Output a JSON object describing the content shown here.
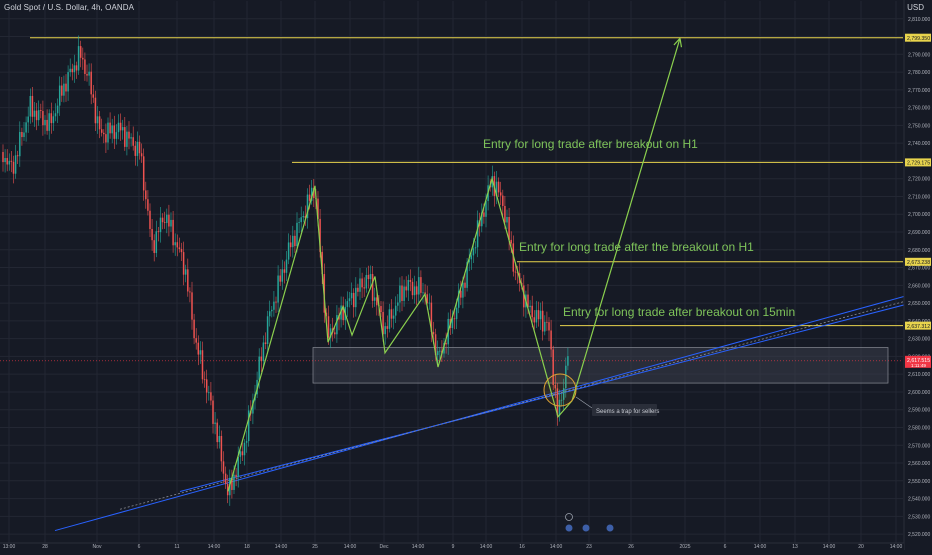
{
  "header": {
    "symbol": "Gold Spot / U.S. Dollar, 4h, OANDA",
    "currency": "USD"
  },
  "chart_data": {
    "type": "candlestick",
    "ylim": [
      2515,
      2820
    ],
    "y_ticks": [
      "2,520.000",
      "2,530.000",
      "2,540.000",
      "2,550.000",
      "2,560.000",
      "2,570.000",
      "2,580.000",
      "2,590.000",
      "2,600.000",
      "2,610.000",
      "2,620.000",
      "2,630.000",
      "2,640.000",
      "2,650.000",
      "2,660.000",
      "2,670.000",
      "2,680.000",
      "2,690.000",
      "2,700.000",
      "2,710.000",
      "2,720.000",
      "2,730.000",
      "2,740.000",
      "2,750.000",
      "2,760.000",
      "2,770.000",
      "2,780.000",
      "2,790.000",
      "2,800.000",
      "2,810.000"
    ],
    "x_tick_labels": [
      "13:00",
      "28",
      "Nov",
      "6",
      "11",
      "14:00",
      "18",
      "14:00",
      "25",
      "14:00",
      "Dec",
      "14:00",
      "9",
      "14:00",
      "16",
      "14:00",
      "23",
      "26",
      "2025",
      "6",
      "14:00",
      "13",
      "14:00",
      "20",
      "14:00"
    ],
    "price_levels": [
      {
        "label": "2,799.350",
        "value": 2799.35
      },
      {
        "label": "2,729.175",
        "value": 2729.175
      },
      {
        "label": "2,673.238",
        "value": 2673.238
      },
      {
        "label": "2,637.312",
        "value": 2637.312
      }
    ],
    "current_price": {
      "label": "2,617.515",
      "sub": "1:11:49",
      "value": 2617.515
    },
    "zone": {
      "low": 2605,
      "high": 2625
    },
    "annotations": [
      {
        "text": "Entry for long trade after breakout on H1",
        "color": "#7ec35a"
      },
      {
        "text": "Entry for long trade after the breakout on H1",
        "color": "#7ec35a"
      },
      {
        "text": "Entry for long trade after breakout on 15min",
        "color": "#7ec35a"
      },
      {
        "text": "Seems a trap for sellers",
        "color": "#c9ccd4"
      }
    ],
    "colors": {
      "up": "#26a69a",
      "down": "#ef5350",
      "level": "#e8d44d",
      "trendline": "#2962ff",
      "zigzag": "#8bd04e",
      "zone": "#3a3e4a",
      "price_tag": "#f23645",
      "grid": "#232733"
    }
  }
}
